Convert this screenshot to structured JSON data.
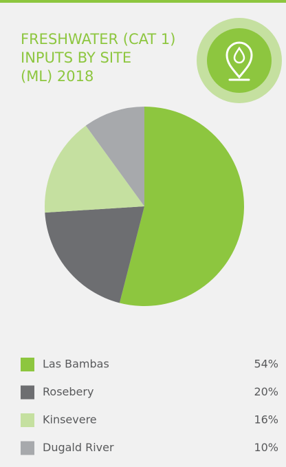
{
  "chart_data": {
    "type": "pie",
    "title": [
      "FRESHWATER (CAT 1)",
      "INPUTS BY SITE",
      "(ML) 2018"
    ],
    "categories": [
      "Las Bambas",
      "Rosebery",
      "Kinsevere",
      "Dugald River"
    ],
    "values": [
      54,
      20,
      16,
      10
    ],
    "value_labels": [
      "54%",
      "20%",
      "16%",
      "10%"
    ],
    "colors": [
      "#8dc63f",
      "#6d6e71",
      "#c5e0a0",
      "#a7a9ac"
    ]
  }
}
